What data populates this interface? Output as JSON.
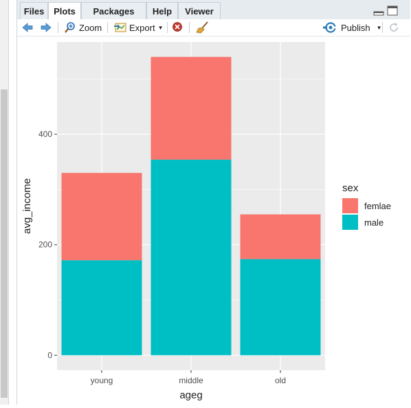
{
  "tabs": [
    {
      "label": "Files",
      "active": false
    },
    {
      "label": "Plots",
      "active": true
    },
    {
      "label": "Packages",
      "active": false
    },
    {
      "label": "Help",
      "active": false
    },
    {
      "label": "Viewer",
      "active": false
    }
  ],
  "toolbar": {
    "zoom_label": "Zoom",
    "export_label": "Export",
    "publish_label": "Publish",
    "icons": [
      "back-arrow-icon",
      "forward-arrow-icon",
      "zoom-icon",
      "export-icon",
      "remove-plot-icon",
      "broom-icon",
      "publish-icon",
      "refresh-icon"
    ]
  },
  "chart_data": {
    "type": "bar",
    "stacked": true,
    "categories": [
      "young",
      "middle",
      "old"
    ],
    "series": [
      {
        "name": "male",
        "color": "#00BFC4",
        "values": [
          172,
          354,
          174
        ]
      },
      {
        "name": "femlae",
        "color": "#F8766D",
        "values": [
          158,
          186,
          81
        ]
      }
    ],
    "xlabel": "ageg",
    "ylabel": "avg_income",
    "yticks": [
      0,
      200,
      400
    ],
    "ylim": [
      -27,
      567
    ],
    "legend": {
      "title": "sex",
      "position": "right",
      "entries": [
        "femlae",
        "male"
      ],
      "colors": [
        "#F8766D",
        "#00BFC4"
      ]
    },
    "grid": true,
    "panel_background": "#EBEBEB"
  }
}
